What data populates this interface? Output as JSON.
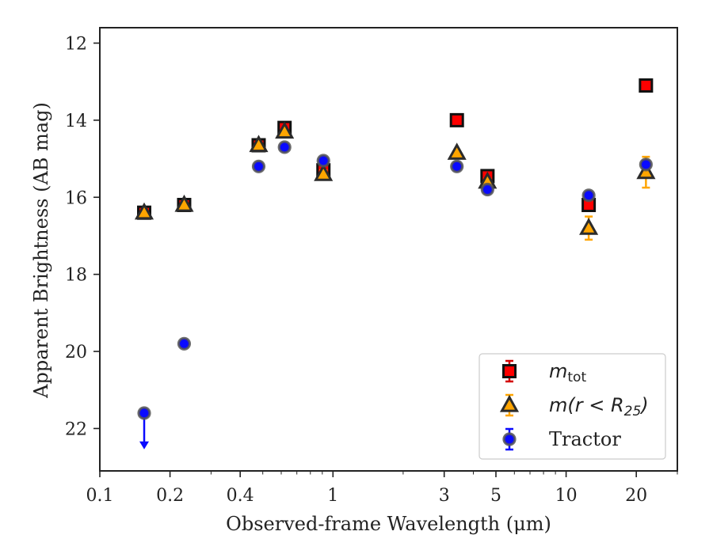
{
  "chart_data": {
    "type": "scatter",
    "xlabel": "Observed-frame Wavelength (μm)",
    "ylabel": "Apparent Brightness (AB mag)",
    "xscale": "log",
    "xlim": [
      0.1,
      30
    ],
    "ylim": [
      23.1,
      11.6
    ],
    "y_inverted": true,
    "grid": false,
    "legend_position": "bottom-right",
    "x_ticks": [
      {
        "value": 0.1,
        "label": "0.1"
      },
      {
        "value": 0.2,
        "label": "0.2"
      },
      {
        "value": 0.4,
        "label": "0.4"
      },
      {
        "value": 1,
        "label": "1"
      },
      {
        "value": 3,
        "label": "3"
      },
      {
        "value": 5,
        "label": "5"
      },
      {
        "value": 10,
        "label": "10"
      },
      {
        "value": 20,
        "label": "20"
      }
    ],
    "y_ticks": [
      {
        "value": 12,
        "label": "12"
      },
      {
        "value": 14,
        "label": "14"
      },
      {
        "value": 16,
        "label": "16"
      },
      {
        "value": 18,
        "label": "18"
      },
      {
        "value": 20,
        "label": "20"
      },
      {
        "value": 22,
        "label": "22"
      }
    ],
    "series": [
      {
        "name": "m_tot",
        "legend_main": "m",
        "legend_sub": "tot",
        "marker": "square",
        "color": "#ff0000",
        "edge_color": "#111111",
        "error_color": "#d40000",
        "points": [
          {
            "x": 0.155,
            "y": 16.4,
            "err": 0.1
          },
          {
            "x": 0.23,
            "y": 16.2,
            "err": 0.1
          },
          {
            "x": 0.48,
            "y": 14.65,
            "err": 0.1
          },
          {
            "x": 0.62,
            "y": 14.2,
            "err": 0.1
          },
          {
            "x": 0.91,
            "y": 15.3,
            "err": 0.12
          },
          {
            "x": 3.4,
            "y": 14.0,
            "err": 0.05
          },
          {
            "x": 4.6,
            "y": 15.45,
            "err": 0.08
          },
          {
            "x": 12.5,
            "y": 16.2,
            "err": 0.1
          },
          {
            "x": 22.0,
            "y": 13.1,
            "err": 0.05
          }
        ]
      },
      {
        "name": "m(r < R_25)",
        "legend_main": "m(r < R",
        "legend_sub": "25",
        "legend_tail": ")",
        "marker": "triangle",
        "color": "#ffa500",
        "edge_color": "#2b2b2b",
        "error_color": "#ffa500",
        "points": [
          {
            "x": 0.155,
            "y": 16.4,
            "err": 0.05
          },
          {
            "x": 0.23,
            "y": 16.2,
            "err": 0.05
          },
          {
            "x": 0.48,
            "y": 14.65,
            "err": 0.05
          },
          {
            "x": 0.62,
            "y": 14.3,
            "err": 0.05
          },
          {
            "x": 0.91,
            "y": 15.4,
            "err": 0.1
          },
          {
            "x": 3.4,
            "y": 14.85,
            "err": 0.05
          },
          {
            "x": 4.6,
            "y": 15.6,
            "err": 0.08
          },
          {
            "x": 12.5,
            "y": 16.8,
            "err": 0.3
          },
          {
            "x": 22.0,
            "y": 15.35,
            "err": 0.4
          }
        ]
      },
      {
        "name": "Tractor",
        "marker": "circle",
        "color": "#0a0aff",
        "edge_color": "#555555",
        "error_color": "#0a0aff",
        "points": [
          {
            "x": 0.155,
            "y": 21.6,
            "upper_limit": true
          },
          {
            "x": 0.23,
            "y": 19.8,
            "err": 0.05
          },
          {
            "x": 0.48,
            "y": 15.2,
            "err": 0.05
          },
          {
            "x": 0.62,
            "y": 14.7,
            "err": 0.05
          },
          {
            "x": 0.91,
            "y": 15.05,
            "err": 0.08
          },
          {
            "x": 3.4,
            "y": 15.2,
            "err": 0.05
          },
          {
            "x": 4.6,
            "y": 15.8,
            "err": 0.05
          },
          {
            "x": 12.5,
            "y": 15.95,
            "err": 0.08
          },
          {
            "x": 22.0,
            "y": 15.15,
            "err": 0.1
          }
        ]
      }
    ]
  }
}
